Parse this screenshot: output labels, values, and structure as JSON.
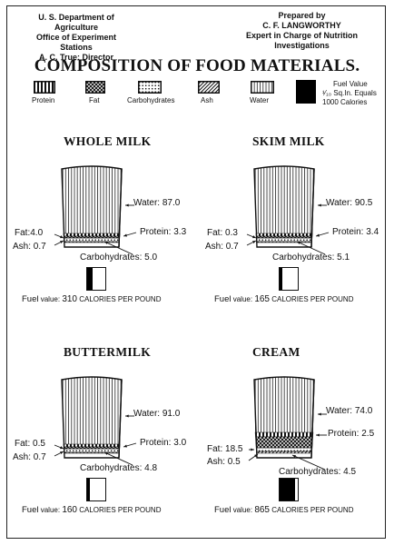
{
  "header": {
    "left_lines": [
      "U. S. Department of Agriculture",
      "Office of Experiment Stations",
      "A. C. True: Director"
    ],
    "right_lines": [
      "Prepared by",
      "C. F. LANGWORTHY",
      "Expert in Charge of Nutrition Investigations"
    ]
  },
  "title": "COMPOSITION OF FOOD MATERIALS.",
  "legend": {
    "items": [
      {
        "label": "Protein",
        "pattern": "vertical-bars"
      },
      {
        "label": "Fat",
        "pattern": "crosshatch"
      },
      {
        "label": "Carbohydrates",
        "pattern": "dots"
      },
      {
        "label": "Ash",
        "pattern": "diagonal-stripes"
      },
      {
        "label": "Water",
        "pattern": "thin-vertical-lines"
      }
    ],
    "fuel_value_lines": [
      "Fuel Value",
      "¹⁄₁₀ Sq.In. Equals",
      "1000 Calories"
    ]
  },
  "foods": [
    {
      "name": "WHOLE MILK",
      "water": "Water: 87.0",
      "protein": "Protein: 3.3",
      "fat": "Fat:4.0",
      "ash": "Ash: 0.7",
      "carbs": "Carbohydrates: 5.0",
      "fuel_prefix": "Fuel",
      "fuel_mid": "value:",
      "fuel_number": "310",
      "fuel_suffix": "calories per pound",
      "fuel_fraction": 0.31
    },
    {
      "name": "SKIM MILK",
      "water": "Water: 90.5",
      "protein": "Protein: 3.4",
      "fat": "Fat: 0.3",
      "ash": "Ash: 0.7",
      "carbs": "Carbohydrates: 5.1",
      "fuel_prefix": "Fuel",
      "fuel_mid": "value:",
      "fuel_number": "165",
      "fuel_suffix": "calories per pound",
      "fuel_fraction": 0.165
    },
    {
      "name": "BUTTERMILK",
      "water": "Water: 91.0",
      "protein": "Protein: 3.0",
      "fat": "Fat: 0.5",
      "ash": "Ash: 0.7",
      "carbs": "Carbohydrates: 4.8",
      "fuel_prefix": "Fuel",
      "fuel_mid": "value:",
      "fuel_number": "160",
      "fuel_suffix": "calories per pound",
      "fuel_fraction": 0.16
    },
    {
      "name": "CREAM",
      "water": "Water: 74.0",
      "protein": "Protein: 2.5",
      "fat": "Fat: 18.5",
      "ash": "Ash: 0.5",
      "carbs": "Carbohydrates: 4.5",
      "fuel_prefix": "Fuel",
      "fuel_mid": "value:",
      "fuel_number": "865",
      "fuel_suffix": "calories per pound",
      "fuel_fraction": 0.865
    }
  ]
}
